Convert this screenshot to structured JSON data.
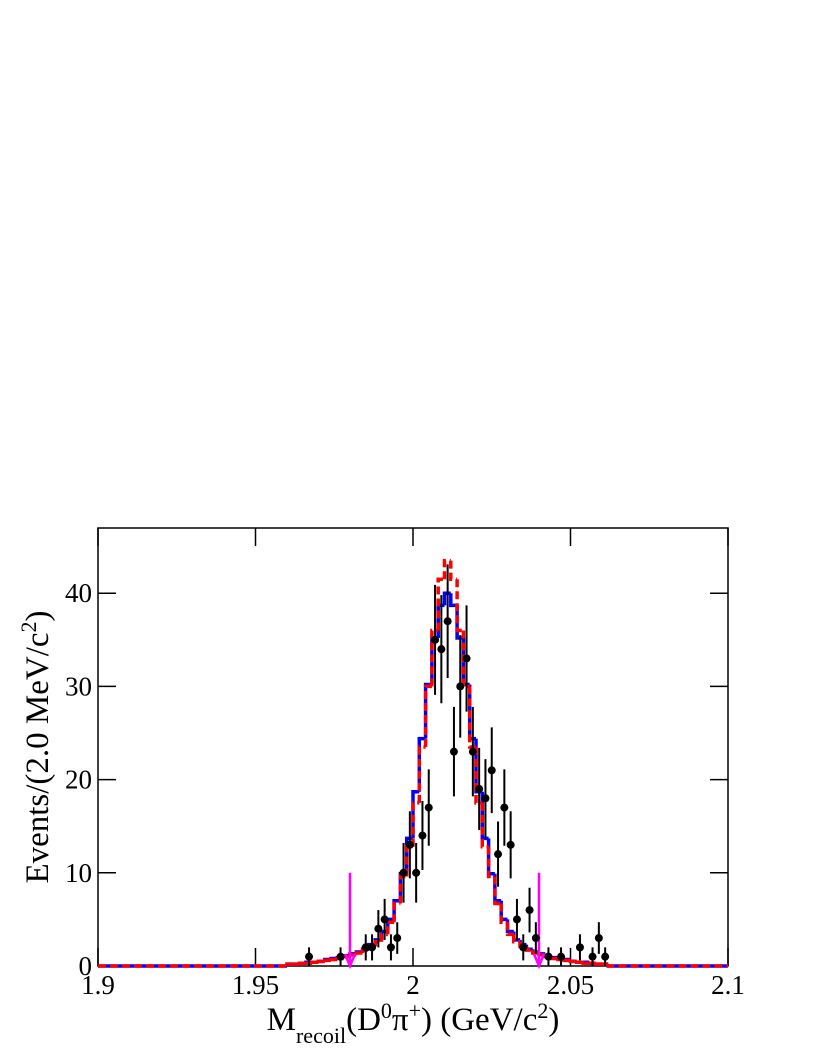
{
  "chart_data": {
    "type": "scatter",
    "xlabel": [
      {
        "text": "M"
      },
      {
        "text": "recoil",
        "shift": "sub"
      },
      {
        "text": "(D"
      },
      {
        "text": "0",
        "shift": "super"
      },
      {
        "text": "π"
      },
      {
        "text": "+",
        "shift": "super"
      },
      {
        "text": ") (GeV/c"
      },
      {
        "text": "2",
        "shift": "super"
      },
      {
        "text": ")"
      }
    ],
    "ylabel": [
      {
        "text": "Events/(2.0 MeV/c"
      },
      {
        "text": "2",
        "shift": "super"
      },
      {
        "text": ")"
      }
    ],
    "xlim": [
      1.9,
      2.1
    ],
    "ylim": [
      0,
      47
    ],
    "xticks": [
      1.9,
      1.95,
      2,
      2.05,
      2.1
    ],
    "yticks": [
      0,
      10,
      20,
      30,
      40
    ],
    "points": {
      "color": "#000000",
      "x": [
        1.967,
        1.977,
        1.985,
        1.987,
        1.989,
        1.991,
        1.993,
        1.995,
        1.997,
        1.999,
        2.001,
        2.003,
        2.005,
        2.007,
        2.009,
        2.011,
        2.013,
        2.015,
        2.017,
        2.019,
        2.021,
        2.023,
        2.025,
        2.027,
        2.029,
        2.031,
        2.033,
        2.035,
        2.037,
        2.039,
        2.043,
        2.047,
        2.053,
        2.057,
        2.059,
        2.061
      ],
      "values": [
        1,
        1,
        2,
        2,
        4,
        5,
        2,
        3,
        10,
        13,
        10,
        14,
        17,
        35,
        34,
        37,
        23,
        30,
        33,
        23,
        19,
        18,
        21,
        12,
        17,
        13,
        5,
        2,
        6,
        3,
        1,
        1,
        2,
        1,
        3,
        1
      ],
      "errors": [
        1,
        1,
        1.4,
        1.4,
        2,
        2.2,
        1.4,
        1.7,
        3.2,
        3.6,
        3.2,
        3.7,
        4.1,
        5.9,
        5.8,
        6.1,
        4.8,
        5.5,
        5.7,
        4.8,
        4.4,
        4.2,
        4.6,
        3.5,
        4.1,
        3.6,
        2.2,
        1.4,
        2.4,
        1.7,
        1,
        1,
        1.4,
        1,
        1.7,
        1
      ]
    },
    "histograms": [
      {
        "color": "#0000ff",
        "dash": false,
        "bins": [
          1.9,
          1.96,
          1.962,
          1.964,
          1.966,
          1.968,
          1.97,
          1.972,
          1.974,
          1.976,
          1.978,
          1.98,
          1.982,
          1.984,
          1.986,
          1.988,
          1.99,
          1.992,
          1.994,
          1.996,
          1.998,
          2,
          2.002,
          2.004,
          2.006,
          2.008,
          2.01,
          2.012,
          2.014,
          2.016,
          2.018,
          2.02,
          2.022,
          2.024,
          2.026,
          2.028,
          2.03,
          2.032,
          2.034,
          2.036,
          2.038,
          2.04,
          2.042,
          2.044,
          2.046,
          2.048,
          2.05,
          2.052,
          2.054,
          2.056,
          2.058,
          2.06,
          2.062,
          2.1
        ],
        "values": [
          0,
          0.2,
          0.2,
          0.3,
          0.4,
          0.4,
          0.5,
          0.7,
          0.8,
          0.9,
          1.1,
          1.3,
          1.5,
          1.8,
          2.3,
          2.8,
          3.7,
          5,
          7,
          9.9,
          13.7,
          18.7,
          24.4,
          30.2,
          35.2,
          38.7,
          40,
          38.7,
          35.2,
          30.2,
          24.4,
          18.7,
          13.7,
          9.9,
          7,
          5,
          3.7,
          2.8,
          2.3,
          1.8,
          1.5,
          1.3,
          1.1,
          0.9,
          0.8,
          0.7,
          0.5,
          0.4,
          0.4,
          0.3,
          0.2,
          0.2,
          0
        ]
      },
      {
        "color": "#ff0000",
        "dash": true,
        "bins": [
          1.9,
          1.96,
          1.962,
          1.964,
          1.966,
          1.968,
          1.97,
          1.972,
          1.974,
          1.976,
          1.978,
          1.98,
          1.982,
          1.984,
          1.986,
          1.988,
          1.99,
          1.992,
          1.994,
          1.996,
          1.998,
          2,
          2.002,
          2.004,
          2.006,
          2.008,
          2.01,
          2.012,
          2.014,
          2.016,
          2.018,
          2.02,
          2.022,
          2.024,
          2.026,
          2.028,
          2.03,
          2.032,
          2.034,
          2.036,
          2.038,
          2.04,
          2.042,
          2.044,
          2.046,
          2.048,
          2.05,
          2.052,
          2.054,
          2.056,
          2.058,
          2.06,
          2.062,
          2.1
        ],
        "values": [
          0,
          0.2,
          0.2,
          0.3,
          0.3,
          0.4,
          0.5,
          0.6,
          0.7,
          0.8,
          1,
          1.2,
          1.4,
          1.7,
          2.1,
          2.6,
          3.4,
          4.7,
          6.7,
          9.6,
          12.8,
          17.5,
          23.5,
          30,
          36,
          41.5,
          43.5,
          41.5,
          36,
          30,
          23.5,
          17.5,
          12.8,
          9.6,
          6.7,
          4.7,
          3.4,
          2.6,
          2.1,
          1.7,
          1.4,
          1.2,
          1,
          0.8,
          0.7,
          0.6,
          0.5,
          0.4,
          0.3,
          0.3,
          0.2,
          0.2,
          0
        ]
      }
    ],
    "arrows": [
      {
        "color": "#ff00ff",
        "x": 1.98,
        "y_top": 10
      },
      {
        "color": "#ff00ff",
        "x": 2.04,
        "y_top": 10
      }
    ]
  }
}
